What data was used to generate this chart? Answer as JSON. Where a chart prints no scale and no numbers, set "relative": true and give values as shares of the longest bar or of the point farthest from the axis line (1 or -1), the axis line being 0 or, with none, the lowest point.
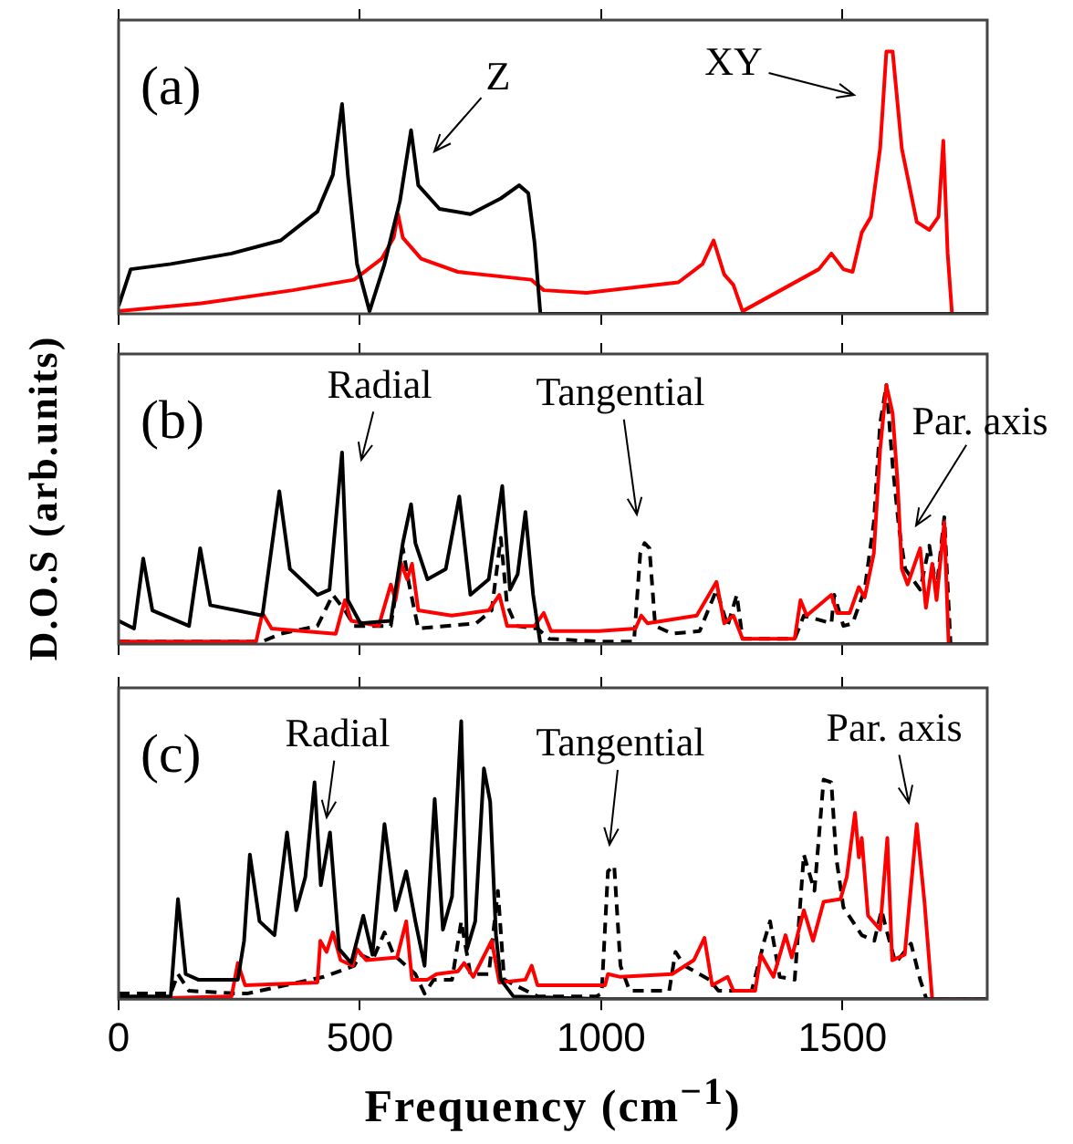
{
  "chart_data": [
    {
      "type": "line",
      "title": "(a)",
      "relative": true,
      "xlim": [
        0,
        1800
      ],
      "xticks": [
        0,
        500,
        1000,
        1500
      ],
      "tick_labels": false,
      "grid": false,
      "legend": false,
      "marker": "none",
      "line_style": "solid",
      "annotations": [
        "Z",
        "XY"
      ],
      "series": [
        {
          "color": "#000000",
          "x": [
            0,
            25,
            108,
            234,
            336,
            412,
            444,
            463,
            475,
            494,
            520,
            551,
            583,
            606,
            621,
            665,
            729,
            792,
            830,
            849,
            862,
            874,
            1800
          ],
          "values": [
            0.03,
            0.17,
            0.19,
            0.23,
            0.28,
            0.39,
            0.53,
            0.8,
            0.53,
            0.19,
            0.01,
            0.19,
            0.43,
            0.7,
            0.49,
            0.4,
            0.38,
            0.44,
            0.49,
            0.46,
            0.27,
            0,
            0
          ]
        },
        {
          "color": "#ff0000",
          "x": [
            0,
            171,
            361,
            488,
            545,
            570,
            579,
            589,
            627,
            703,
            855,
            881,
            970,
            1160,
            1210,
            1233,
            1255,
            1274,
            1293,
            1451,
            1477,
            1502,
            1521,
            1540,
            1559,
            1578,
            1591,
            1604,
            1623,
            1654,
            1680,
            1699,
            1709,
            1718,
            1727,
            1800
          ],
          "values": [
            0.01,
            0.04,
            0.09,
            0.13,
            0.21,
            0.29,
            0.38,
            0.29,
            0.21,
            0.16,
            0.13,
            0.09,
            0.08,
            0.12,
            0.19,
            0.28,
            0.15,
            0.11,
            0.01,
            0.17,
            0.23,
            0.17,
            0.16,
            0.31,
            0.37,
            0.63,
            1,
            1,
            0.63,
            0.35,
            0.32,
            0.37,
            0.66,
            0.23,
            0,
            0
          ]
        }
      ]
    },
    {
      "type": "line",
      "title": "(b)",
      "ylabel": "D.O.S (arb.units)",
      "relative": true,
      "xlim": [
        0,
        1800
      ],
      "xticks": [
        0,
        500,
        1000,
        1500
      ],
      "tick_labels": false,
      "grid": false,
      "legend": false,
      "marker": "none",
      "line_style": "solid",
      "annotations": [
        "Radial",
        "Tangential",
        "Par. axis"
      ],
      "series": [
        {
          "color": "#000000",
          "x": [
            0,
            32,
            51,
            70,
            146,
            169,
            190,
            298,
            333,
            355,
            412,
            437,
            463,
            475,
            501,
            564,
            589,
            606,
            615,
            640,
            678,
            706,
            729,
            767,
            795,
            811,
            827,
            843,
            859,
            874,
            1800
          ],
          "values": [
            0.09,
            0.06,
            0.33,
            0.13,
            0.07,
            0.37,
            0.15,
            0.11,
            0.59,
            0.29,
            0.19,
            0.21,
            0.74,
            0.17,
            0.08,
            0.09,
            0.39,
            0.54,
            0.39,
            0.25,
            0.29,
            0.57,
            0.19,
            0.25,
            0.61,
            0.21,
            0.27,
            0.51,
            0.19,
            0,
            0
          ]
        },
        {
          "color": "#ff0000",
          "x": [
            0,
            285,
            298,
            317,
            450,
            469,
            482,
            539,
            564,
            574,
            586,
            598,
            608,
            621,
            690,
            767,
            789,
            805,
            862,
            881,
            896,
            995,
            1071,
            1083,
            1096,
            1198,
            1239,
            1255,
            1274,
            1293,
            1401,
            1413,
            1426,
            1477,
            1489,
            1515,
            1534,
            1546,
            1565,
            1578,
            1591,
            1604,
            1614,
            1623,
            1635,
            1661,
            1673,
            1686,
            1695,
            1711,
            1720,
            1800
          ],
          "values": [
            0.01,
            0.01,
            0.12,
            0.06,
            0.04,
            0.17,
            0.09,
            0.07,
            0.23,
            0.17,
            0.31,
            0.25,
            0.31,
            0.13,
            0.11,
            0.13,
            0.19,
            0.07,
            0.07,
            0.12,
            0.05,
            0.05,
            0.06,
            0.11,
            0.08,
            0.11,
            0.24,
            0.08,
            0.11,
            0.02,
            0.02,
            0.17,
            0.11,
            0.19,
            0.12,
            0.12,
            0.22,
            0.18,
            0.35,
            0.75,
            1,
            0.89,
            0.63,
            0.29,
            0.23,
            0.37,
            0.14,
            0.31,
            0.17,
            0.47,
            0,
            0
          ]
        },
        {
          "color": "#000000",
          "line_style": "dashed",
          "x": [
            0,
            298,
            336,
            412,
            444,
            469,
            488,
            564,
            589,
            602,
            621,
            741,
            773,
            792,
            805,
            824,
            868,
            893,
            995,
            1068,
            1081,
            1090,
            1100,
            1112,
            1147,
            1204,
            1239,
            1262,
            1281,
            1293,
            1401,
            1420,
            1477,
            1483,
            1502,
            1521,
            1546,
            1565,
            1578,
            1591,
            1604,
            1617,
            1630,
            1661,
            1680,
            1695,
            1711,
            1724,
            1800
          ],
          "values": [
            0.01,
            0.01,
            0.04,
            0.07,
            0.19,
            0.13,
            0.07,
            0.07,
            0.37,
            0.23,
            0.06,
            0.08,
            0.13,
            0.41,
            0.15,
            0.07,
            0.06,
            0.02,
            0.01,
            0.01,
            0.35,
            0.39,
            0.37,
            0.07,
            0.04,
            0.05,
            0.21,
            0.07,
            0.19,
            0.02,
            0.02,
            0.11,
            0.08,
            0.19,
            0.07,
            0.08,
            0.21,
            0.47,
            0.85,
            1,
            0.69,
            0.45,
            0.29,
            0.21,
            0.38,
            0.21,
            0.49,
            0,
            0
          ]
        }
      ]
    },
    {
      "type": "line",
      "title": "(c)",
      "xlabel": "Frequency (cm$^{−1}$)",
      "relative": true,
      "xlim": [
        0,
        1800
      ],
      "xticks": [
        0,
        500,
        1000,
        1500
      ],
      "tick_labels": "x",
      "grid": false,
      "legend": false,
      "marker": "none",
      "line_style": "solid",
      "annotations": [
        "Radial",
        "Tangential",
        "Par. axis"
      ],
      "series": [
        {
          "color": "#000000",
          "x": [
            0,
            108,
            123,
            139,
            165,
            247,
            260,
            272,
            292,
            323,
            349,
            368,
            387,
            406,
            419,
            438,
            457,
            482,
            507,
            526,
            551,
            574,
            596,
            615,
            634,
            655,
            672,
            691,
            710,
            722,
            739,
            757,
            770,
            782,
            792,
            818,
            1008,
            1800
          ],
          "values": [
            0.01,
            0.01,
            0.36,
            0.09,
            0.07,
            0.07,
            0.21,
            0.52,
            0.28,
            0.23,
            0.6,
            0.32,
            0.44,
            0.78,
            0.41,
            0.6,
            0.18,
            0.13,
            0.3,
            0.16,
            0.63,
            0.32,
            0.46,
            0.28,
            0.12,
            0.72,
            0.25,
            0.37,
            1,
            0.18,
            0.28,
            0.83,
            0.71,
            0.23,
            0.07,
            0.01,
            0,
            0
          ]
        },
        {
          "color": "#ff0000",
          "x": [
            0,
            234,
            247,
            262,
            412,
            418,
            431,
            444,
            460,
            485,
            494,
            513,
            577,
            596,
            608,
            640,
            659,
            703,
            716,
            735,
            773,
            789,
            843,
            856,
            868,
            1008,
            1014,
            1040,
            1147,
            1192,
            1214,
            1230,
            1262,
            1274,
            1319,
            1331,
            1357,
            1382,
            1395,
            1420,
            1439,
            1461,
            1496,
            1509,
            1526,
            1534,
            1540,
            1553,
            1578,
            1593,
            1603,
            1629,
            1654,
            1670,
            1686,
            1800
          ],
          "values": [
            0,
            0.01,
            0.13,
            0.05,
            0.06,
            0.21,
            0.17,
            0.24,
            0.14,
            0.12,
            0.18,
            0.14,
            0.15,
            0.28,
            0.07,
            0.07,
            0.09,
            0.1,
            0.13,
            0.08,
            0.21,
            0.06,
            0.07,
            0.12,
            0.05,
            0.05,
            0.09,
            0.08,
            0.09,
            0.14,
            0.22,
            0.05,
            0.08,
            0.03,
            0.03,
            0.16,
            0.08,
            0.23,
            0.15,
            0.32,
            0.21,
            0.35,
            0.36,
            0.44,
            0.67,
            0.51,
            0.58,
            0.3,
            0.25,
            0.58,
            0.14,
            0.16,
            0.63,
            0.35,
            0,
            0
          ]
        },
        {
          "color": "#000000",
          "line_style": "dashed",
          "x": [
            0,
            108,
            123,
            146,
            247,
            266,
            425,
            488,
            501,
            526,
            551,
            570,
            615,
            634,
            653,
            691,
            710,
            729,
            767,
            786,
            799,
            868,
            990,
            1001,
            1014,
            1027,
            1040,
            1059,
            1141,
            1154,
            1173,
            1224,
            1243,
            1312,
            1338,
            1350,
            1370,
            1401,
            1420,
            1442,
            1461,
            1477,
            1487,
            1502,
            1540,
            1566,
            1581,
            1591,
            1610,
            1642,
            1661,
            1674,
            1800
          ],
          "values": [
            0.02,
            0.02,
            0.09,
            0.03,
            0.02,
            0.02,
            0.08,
            0.12,
            0.16,
            0.14,
            0.24,
            0.16,
            0.09,
            0.02,
            0.07,
            0.07,
            0.28,
            0.09,
            0.09,
            0.39,
            0.07,
            0.01,
            0.01,
            0.02,
            0.46,
            0.48,
            0.12,
            0.03,
            0.03,
            0.17,
            0.12,
            0.07,
            0.03,
            0.03,
            0.21,
            0.28,
            0.08,
            0.07,
            0.52,
            0.39,
            0.79,
            0.78,
            0.51,
            0.33,
            0.23,
            0.21,
            0.32,
            0.25,
            0.13,
            0.2,
            0.07,
            0,
            0
          ]
        }
      ]
    }
  ]
}
